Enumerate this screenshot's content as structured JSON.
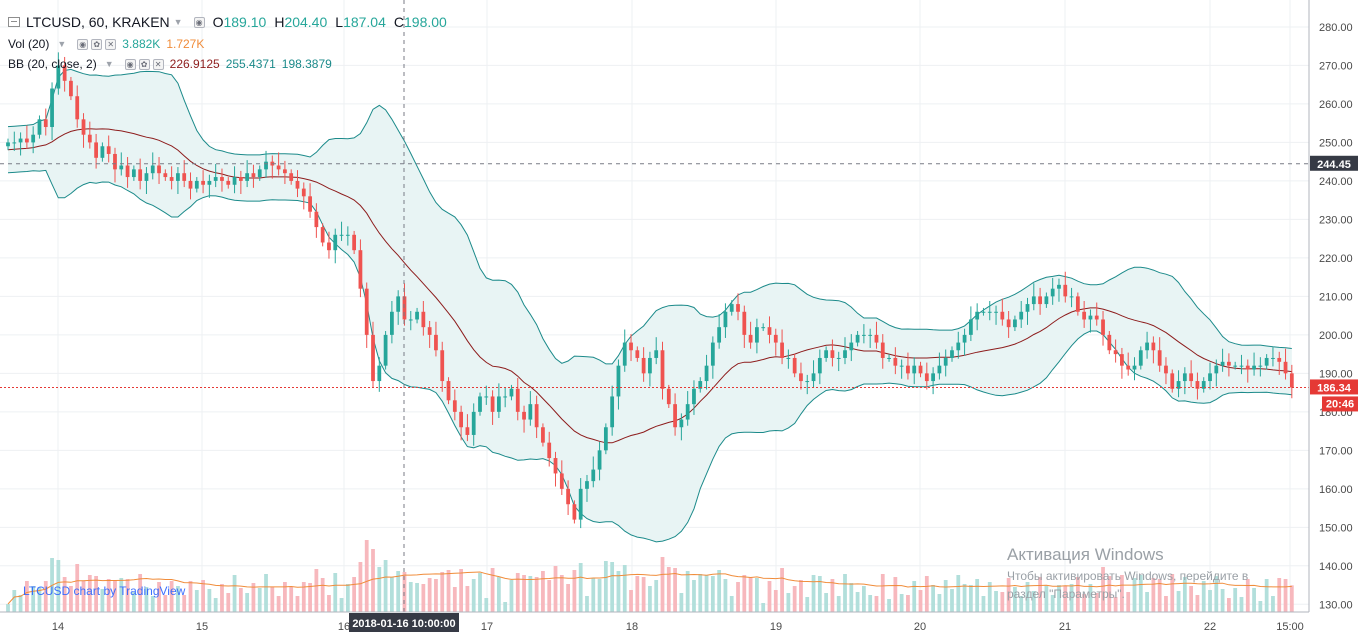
{
  "header": {
    "symbol": "LTCUSD, 60, KRAKEN",
    "open_label": "O",
    "open": "189.10",
    "high_label": "H",
    "high": "204.40",
    "low_label": "L",
    "low": "187.04",
    "close_label": "C",
    "close": "198.00"
  },
  "vol_legend": {
    "label": "Vol (20)",
    "v1": "3.882K",
    "v2": "1.727K"
  },
  "bb_legend": {
    "label": "BB (20, close, 2)",
    "mid": "226.9125",
    "upper": "255.4371",
    "lower": "198.3879"
  },
  "colors": {
    "up": "#26a69a",
    "down": "#ef5350",
    "up_vol": "#b2dfdb",
    "down_vol": "#f7b8bd",
    "basis": "#8d1c1c",
    "band": "#1b8a8a",
    "band_fill": "#e8f4f4",
    "vol_ma": "#f08c3a",
    "price_line": "#e53935"
  },
  "axis": {
    "y_ticks": [
      "280.00",
      "270.00",
      "260.00",
      "250.00",
      "240.00",
      "230.00",
      "220.00",
      "210.00",
      "200.00",
      "190.00",
      "180.00",
      "170.00",
      "160.00",
      "150.00",
      "140.00",
      "130.00"
    ],
    "x_ticks": [
      "14",
      "15",
      "16",
      "17",
      "18",
      "19",
      "20",
      "21",
      "22",
      "15:00"
    ],
    "crosshair_price": "244.45",
    "crosshair_time": "2018-01-16 10:00:00",
    "last_price": "186.34",
    "countdown": "20:46"
  },
  "watermark": "LTCUSD chart by TradingView",
  "activation": {
    "title": "Активация Windows",
    "line1": "Чтобы активировать Windows, перейдите в",
    "line2": "раздел \"Параметры\"."
  },
  "chart_data": {
    "type": "candlestick",
    "ylim": [
      128,
      287
    ],
    "x_day_labels": [
      "14",
      "15",
      "16",
      "17",
      "18",
      "19",
      "20",
      "21",
      "22"
    ],
    "close_series": [
      250,
      250,
      251,
      250,
      252,
      256,
      254,
      264,
      270,
      266,
      262,
      256,
      252,
      250,
      246,
      249,
      247,
      243,
      244,
      241,
      243,
      240,
      242,
      244,
      242,
      241,
      240,
      242,
      240,
      238,
      240,
      239,
      240,
      241,
      240,
      239,
      241,
      240,
      242,
      241,
      243,
      245,
      244,
      243,
      242,
      240,
      238,
      236,
      232,
      228,
      224,
      222,
      226,
      226,
      226,
      222,
      212,
      200,
      188,
      192,
      200,
      206,
      210,
      204,
      204,
      206,
      202,
      200,
      196,
      188,
      183,
      180,
      176,
      174,
      180,
      184,
      184,
      180,
      184,
      184,
      186,
      180,
      178,
      182,
      176,
      172,
      168,
      164,
      160,
      156,
      152,
      160,
      162,
      165,
      170,
      176,
      184,
      192,
      198,
      196,
      194,
      190,
      194,
      196,
      186,
      182,
      176,
      178,
      182,
      186,
      188,
      192,
      198,
      202,
      206,
      208,
      206,
      200,
      198,
      202,
      202,
      200,
      198,
      194,
      194,
      190,
      188,
      188,
      190,
      194,
      196,
      194,
      194,
      196,
      198,
      200,
      200,
      200,
      198,
      194,
      194,
      192,
      192,
      190,
      192,
      190,
      188,
      190,
      192,
      194,
      196,
      198,
      200,
      204,
      206,
      206,
      206,
      206,
      204,
      202,
      204,
      206,
      208,
      210,
      208,
      210,
      212,
      213,
      210,
      210,
      206,
      204,
      205,
      204,
      200,
      196,
      195,
      192,
      191,
      192,
      196,
      198,
      196,
      192,
      190,
      186,
      188,
      190,
      188,
      186,
      188,
      190,
      192,
      193,
      192,
      192,
      192,
      191,
      192,
      192,
      194,
      194,
      193,
      190,
      186.34
    ],
    "basis_start": 248,
    "vol_ma_start": 0.25
  }
}
